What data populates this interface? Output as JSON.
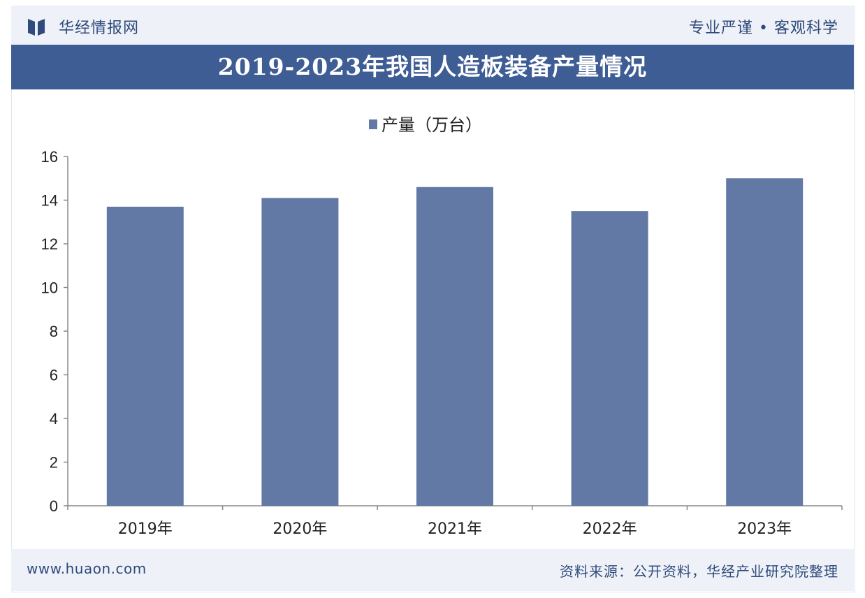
{
  "header": {
    "brand": "华经情报网",
    "slogan": "专业严谨 • 客观科学",
    "title": "2019-2023年我国人造板装备产量情况"
  },
  "footer": {
    "url": "www.huaon.com",
    "source": "资料来源：公开资料，华经产业研究院整理"
  },
  "colors": {
    "bar": "#6279a6",
    "title_band": "#3f5d95",
    "brand_text": "#2f4a7c",
    "panel_bg": "#eef2f8"
  },
  "chart_data": {
    "type": "bar",
    "categories": [
      "2019年",
      "2020年",
      "2021年",
      "2022年",
      "2023年"
    ],
    "series": [
      {
        "name": "产量（万台）",
        "values": [
          13.7,
          14.1,
          14.6,
          13.5,
          15.0
        ]
      }
    ],
    "ylim": [
      0,
      16
    ],
    "yticks": [
      0,
      2,
      4,
      6,
      8,
      10,
      12,
      14,
      16
    ],
    "legend": "top-center",
    "grid": false
  }
}
